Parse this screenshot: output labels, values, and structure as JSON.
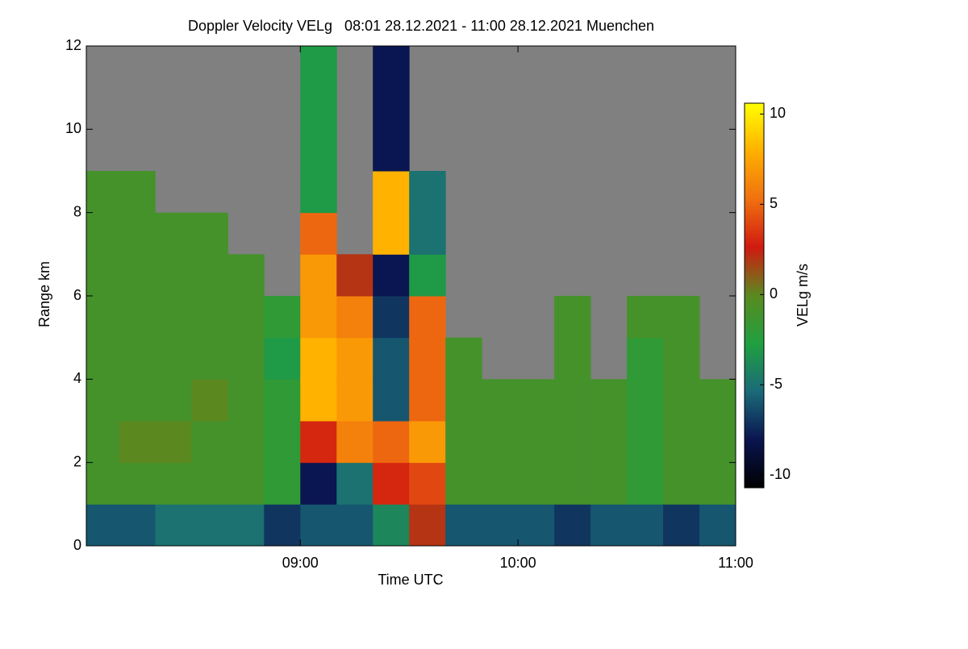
{
  "chart_data": {
    "type": "heatmap",
    "title": "Doppler Velocity VELg   08:01 28.12.2021 - 11:00 28.12.2021 Muenchen",
    "x_label": "Time UTC",
    "y_label": "Range km",
    "colorbar_label": "VELg m/s",
    "xlim": [
      8.017,
      11.0
    ],
    "ylim": [
      0,
      12
    ],
    "xticks": [
      {
        "value": 9,
        "label": "09:00"
      },
      {
        "value": 10,
        "label": "10:00"
      },
      {
        "value": 11,
        "label": "11:00"
      }
    ],
    "yticks": [
      0,
      2,
      4,
      6,
      8,
      10,
      12
    ],
    "clim": [
      -10.7,
      10.6
    ],
    "cticks": [
      -10,
      -5,
      0,
      5,
      10
    ],
    "colormap": [
      "#000000",
      "#0a1550",
      "#1a6a78",
      "#20a040",
      "#5a8a20",
      "#d01a10",
      "#f07010",
      "#ffb000",
      "#ffff00"
    ],
    "missing_color": "#808080",
    "x_edges": [
      8.017,
      8.1667,
      8.3333,
      8.5,
      8.6667,
      8.8333,
      9.0,
      9.1667,
      9.3333,
      9.5,
      9.6667,
      9.8333,
      10.0,
      10.1667,
      10.3333,
      10.5,
      10.6667,
      10.8333,
      11.0
    ],
    "y_edges": [
      0,
      1,
      2,
      3,
      4,
      5,
      6,
      7,
      8,
      9,
      10,
      11,
      12
    ],
    "z": [
      [
        -6,
        -1,
        -1,
        -1,
        -1,
        -1,
        -1,
        -1,
        -1,
        null,
        null,
        null
      ],
      [
        -6,
        -1,
        0,
        -1,
        -1,
        -1,
        -1,
        -1,
        -1,
        null,
        null,
        null
      ],
      [
        -5,
        -1,
        0,
        -1,
        -1,
        -1,
        -1,
        -1,
        null,
        null,
        null,
        null
      ],
      [
        -5,
        -1,
        -1,
        0,
        -1,
        -1,
        -1,
        -1,
        null,
        null,
        null,
        null
      ],
      [
        -5,
        -1,
        -1,
        -1,
        -1,
        -1,
        -1,
        null,
        null,
        null,
        null,
        null
      ],
      [
        -7,
        -2,
        -2,
        -2,
        -3,
        -2,
        null,
        null,
        null,
        null,
        null,
        null
      ],
      [
        -6,
        -8,
        3,
        8,
        8,
        7,
        7,
        5,
        -3,
        -3,
        -3,
        -3
      ],
      [
        -6,
        -5,
        6,
        7,
        7,
        6,
        2,
        null,
        null,
        null,
        null,
        null
      ],
      [
        -4,
        3,
        5,
        -6,
        -6,
        -7,
        -8,
        8,
        8,
        -8,
        -8,
        -8
      ],
      [
        2,
        4,
        7,
        5,
        5,
        5,
        -3,
        -5,
        -5,
        null,
        null,
        null
      ],
      [
        -6,
        -1,
        -1,
        -1,
        -1,
        null,
        null,
        null,
        null,
        null,
        null,
        null
      ],
      [
        -6,
        -1,
        -1,
        -1,
        null,
        null,
        null,
        null,
        null,
        null,
        null,
        null
      ],
      [
        -6,
        -1,
        -1,
        -1,
        null,
        null,
        null,
        null,
        null,
        null,
        null,
        null
      ],
      [
        -7,
        -1,
        -1,
        -1,
        -1,
        -1,
        null,
        null,
        null,
        null,
        null,
        null
      ],
      [
        -6,
        -1,
        -1,
        -1,
        null,
        null,
        null,
        null,
        null,
        null,
        null,
        null
      ],
      [
        -6,
        -2,
        -2,
        -2,
        -2,
        -1,
        null,
        null,
        null,
        null,
        null,
        null
      ],
      [
        -7,
        -1,
        -1,
        -1,
        -1,
        -1,
        null,
        null,
        null,
        null,
        null,
        null
      ],
      [
        -6,
        -1,
        -1,
        -1,
        null,
        null,
        null,
        null,
        null,
        null,
        null,
        null
      ]
    ]
  }
}
